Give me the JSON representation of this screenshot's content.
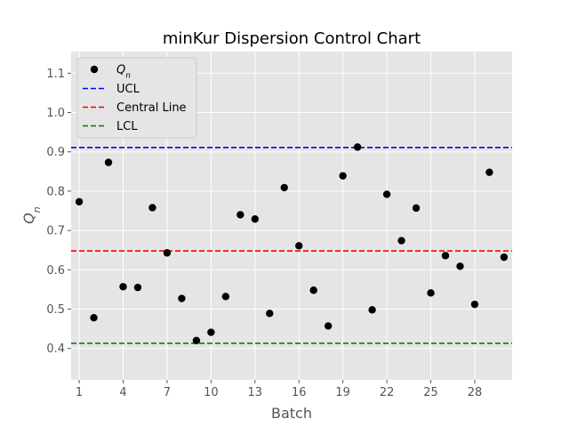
{
  "chart_data": {
    "type": "scatter",
    "title": "minKur Dispersion Control Chart",
    "xlabel": "Batch",
    "ylabel": "Q_n",
    "x": [
      1,
      2,
      3,
      4,
      5,
      6,
      7,
      8,
      9,
      10,
      11,
      12,
      13,
      14,
      15,
      16,
      17,
      18,
      19,
      20,
      21,
      22,
      23,
      24,
      25,
      26,
      27,
      28,
      29,
      30
    ],
    "series": [
      {
        "name": "Q_n",
        "color": "#000000",
        "values": [
          0.773,
          0.478,
          0.873,
          0.557,
          0.555,
          0.758,
          0.643,
          0.527,
          0.42,
          0.441,
          0.532,
          0.74,
          0.729,
          0.489,
          0.809,
          0.661,
          0.548,
          0.457,
          0.839,
          0.912,
          0.498,
          0.792,
          0.674,
          0.757,
          0.541,
          0.636,
          0.609,
          0.512,
          0.848,
          0.632
        ]
      }
    ],
    "lines": [
      {
        "name": "UCL",
        "value": 0.911,
        "color": "#0000ff"
      },
      {
        "name": "Central Line",
        "value": 0.648,
        "color": "#ff0000"
      },
      {
        "name": "LCL",
        "value": 0.413,
        "color": "#008000"
      }
    ],
    "xticks": [
      1,
      4,
      7,
      10,
      13,
      16,
      19,
      22,
      25,
      28
    ],
    "yticks": [
      0.4,
      0.5,
      0.6,
      0.7,
      0.8,
      0.9,
      1.0,
      1.1
    ],
    "xlim": [
      0.45,
      30.55
    ],
    "ylim": [
      0.32,
      1.155
    ],
    "grid": true,
    "legend_position": "upper-left"
  }
}
